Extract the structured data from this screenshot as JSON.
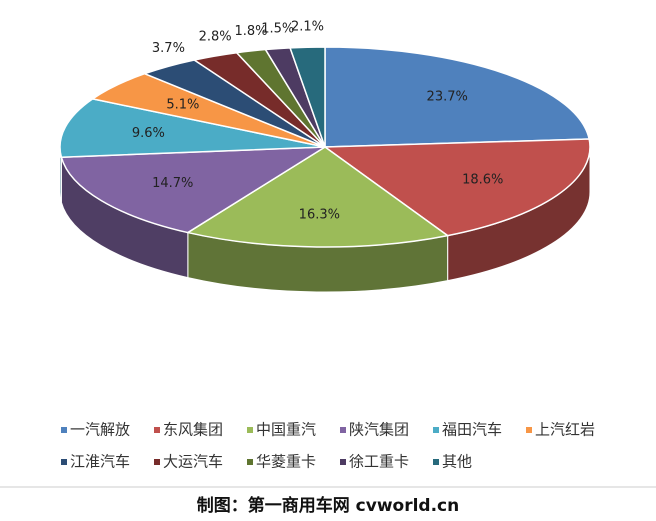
{
  "chart_data": {
    "type": "pie3d",
    "categories": [
      "一汽解放",
      "东风集团",
      "中国重汽",
      "陕汽集团",
      "福田汽车",
      "上汽红岩",
      "江淮汽车",
      "大运汽车",
      "华菱重卡",
      "徐工重卡",
      "其他"
    ],
    "values": [
      23.7,
      18.6,
      16.3,
      14.7,
      9.6,
      5.1,
      3.7,
      2.8,
      1.8,
      1.5,
      2.1
    ],
    "value_labels": [
      "23.7%",
      "18.6%",
      "16.3%",
      "14.7%",
      "9.6%",
      "5.1%",
      "3.7%",
      "2.8%",
      "1.8%",
      "1.5%",
      "2.1%"
    ],
    "colors": [
      "#4f81bd",
      "#c0504d",
      "#9bbb59",
      "#8064a2",
      "#4bacc6",
      "#f79646",
      "#2c4d75",
      "#772c2a",
      "#5f7530",
      "#4d3b62",
      "#276a7c"
    ],
    "legend": "bottom",
    "caption": "制图：第一商用车网 cvworld.cn"
  }
}
